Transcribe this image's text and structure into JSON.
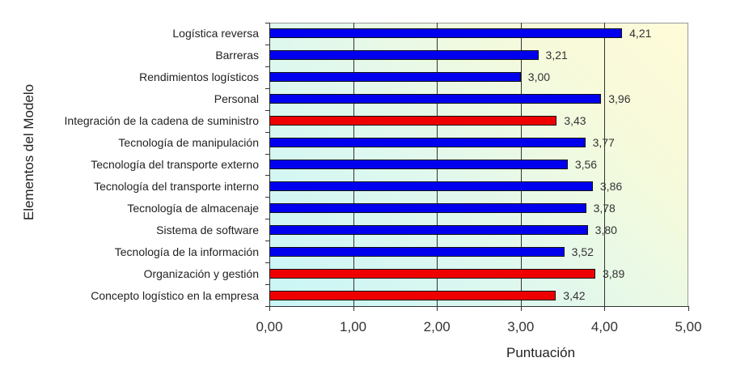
{
  "chart_data": {
    "type": "bar",
    "orientation": "horizontal",
    "title": "",
    "xlabel": "Puntuación",
    "ylabel": "Elementos del Modelo",
    "xlim": [
      0,
      5
    ],
    "xticks": [
      "0,00",
      "1,00",
      "2,00",
      "3,00",
      "4,00",
      "5,00"
    ],
    "grid": "vertical lines at 1,00 through 4,00",
    "legend": "none",
    "categories": [
      "Logística reversa",
      "Barreras",
      "Rendimientos logísticos",
      "Personal",
      "Integración de la cadena de suministro",
      "Tecnología de manipulación",
      "Tecnología del transporte externo",
      "Tecnología del transporte interno",
      "Tecnología de almacenaje",
      "Sistema de software",
      "Tecnología de la información",
      "Organización y gestión",
      "Concepto logístico en la empresa"
    ],
    "values": [
      4.21,
      3.21,
      3.0,
      3.96,
      3.43,
      3.77,
      3.56,
      3.86,
      3.78,
      3.8,
      3.52,
      3.89,
      3.42
    ],
    "value_labels": [
      "4,21",
      "3,21",
      "3,00",
      "3,96",
      "3,43",
      "3,77",
      "3,56",
      "3,86",
      "3,78",
      "3,80",
      "3,52",
      "3,89",
      "3,42"
    ],
    "bar_colors": [
      "#0000ee",
      "#0000ee",
      "#0000ee",
      "#0000ee",
      "#ee0000",
      "#0000ee",
      "#0000ee",
      "#0000ee",
      "#0000ee",
      "#0000ee",
      "#0000ee",
      "#ee0000",
      "#ee0000"
    ],
    "colors": {
      "blue": "#0000ee",
      "red": "#ee0000"
    }
  }
}
